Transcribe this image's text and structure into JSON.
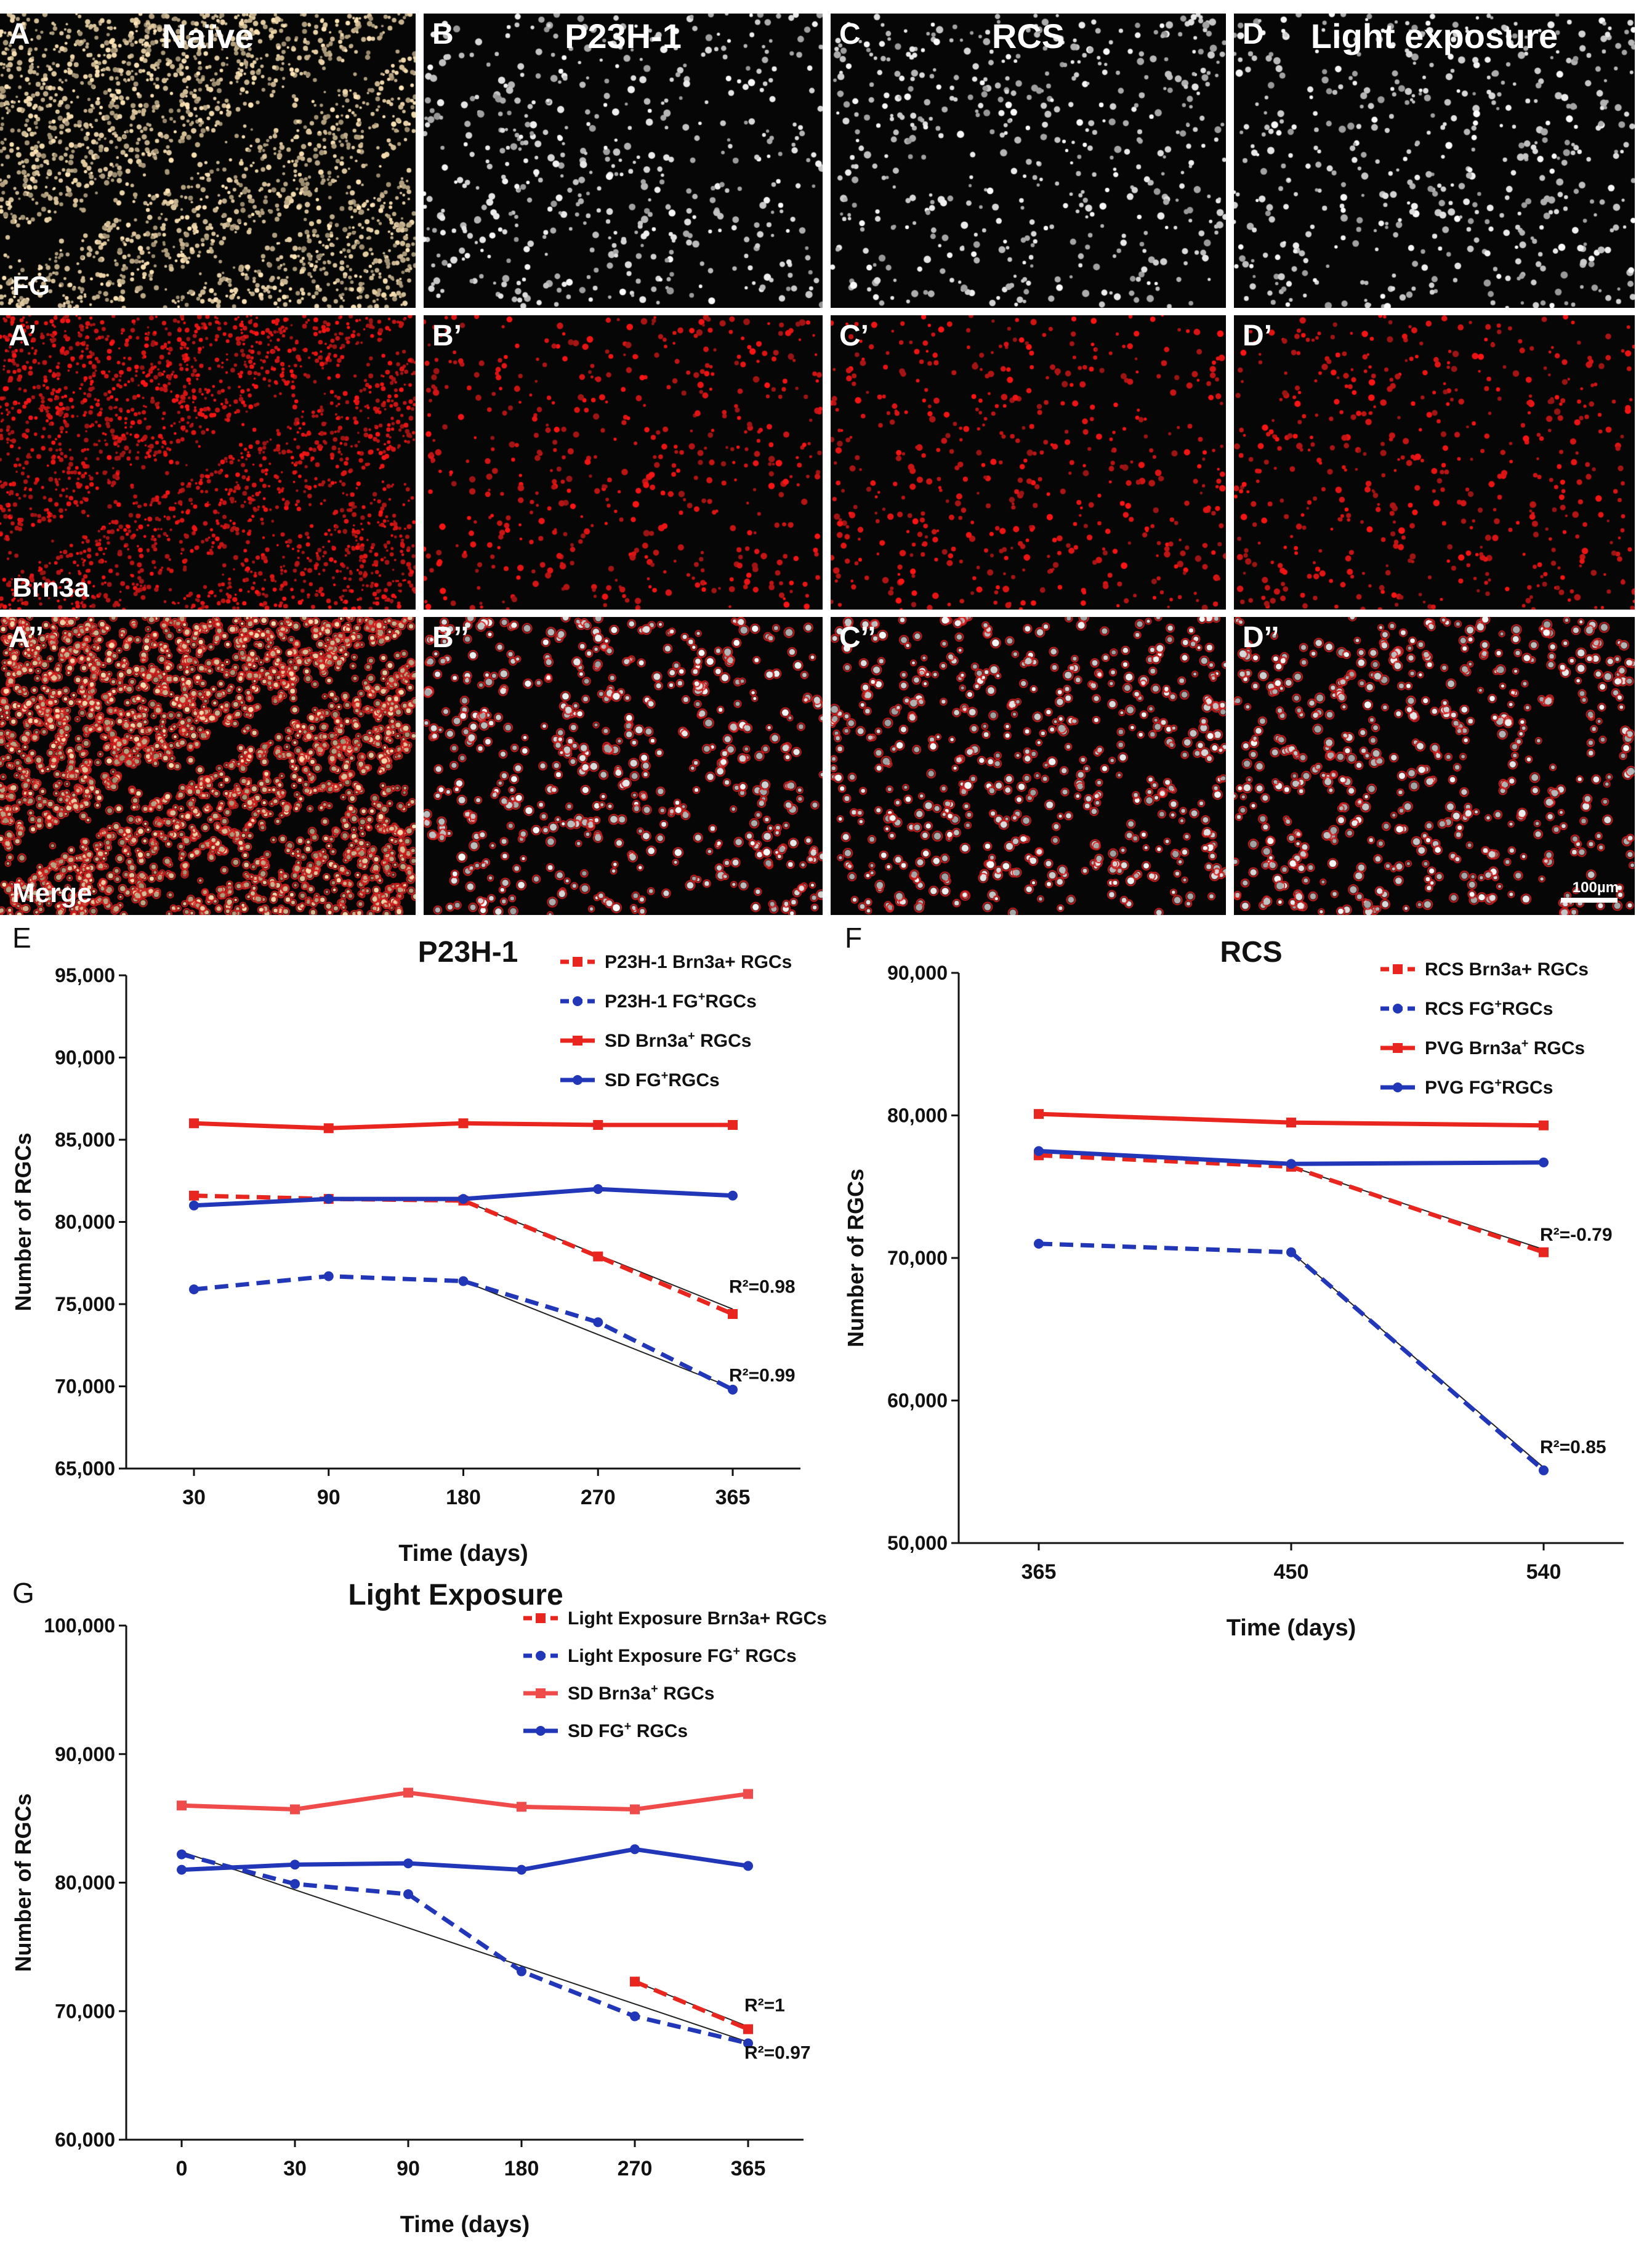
{
  "micro": {
    "columns": [
      {
        "title": "Naïve",
        "letters": [
          "A",
          "A’",
          "A’’"
        ],
        "kind": "naive"
      },
      {
        "title": "P23H-1",
        "letters": [
          "B",
          "B’",
          "B’’"
        ],
        "kind": "p23h"
      },
      {
        "title": "RCS",
        "letters": [
          "C",
          "C’",
          "C’’"
        ],
        "kind": "rcs"
      },
      {
        "title": "Light exposure",
        "letters": [
          "D",
          "D’",
          "D’’"
        ],
        "kind": "light"
      }
    ],
    "row_labels": [
      "FG",
      "Brn3a",
      "Merge"
    ],
    "scale_bar": "100µm"
  },
  "chart_data": [
    {
      "panel": "E",
      "type": "line",
      "title": "P23H-1",
      "xlabel": "Time (days)",
      "ylabel": "Number of RGCs",
      "categories": [
        "30",
        "90",
        "180",
        "270",
        "365"
      ],
      "ylim": [
        65000,
        95000
      ],
      "yticks": [
        "65,000",
        "70,000",
        "75,000",
        "80,000",
        "85,000",
        "90,000",
        "95,000"
      ],
      "legend": [
        {
          "label": "P23H-1  Brn3a+ RGCs",
          "pre": "P23H-1  Brn3a",
          "sup": "",
          "post": "+ RGCs",
          "color": "#e8261f",
          "dash": true
        },
        {
          "label": "P23H-1 FG+RGCs",
          "pre": "P23H-1 FG",
          "sup": "+",
          "post": "RGCs",
          "color": "#2236b8",
          "dash": true
        },
        {
          "label": "SD Brn3a+ RGCs",
          "pre": "SD Brn3a",
          "sup": "+",
          "post": " RGCs",
          "color": "#e8261f",
          "dash": false
        },
        {
          "label": "SD FG+RGCs",
          "pre": "SD FG",
          "sup": "+",
          "post": "RGCs",
          "color": "#2236b8",
          "dash": false
        }
      ],
      "series": [
        {
          "name": "P23H-1 Brn3a+ RGCs",
          "style": "dashed",
          "marker": "square",
          "color": "#e8261f",
          "values": [
            81600,
            81400,
            81300,
            77900,
            74400
          ]
        },
        {
          "name": "P23H-1 FG+ RGCs",
          "style": "dashed",
          "marker": "circle",
          "color": "#2236b8",
          "values": [
            75900,
            76700,
            76400,
            73900,
            69800
          ]
        },
        {
          "name": "SD Brn3a+ RGCs",
          "style": "solid",
          "marker": "square",
          "color": "#e8261f",
          "values": [
            86000,
            85700,
            86000,
            85900,
            85900
          ]
        },
        {
          "name": "SD FG+ RGCs",
          "style": "solid",
          "marker": "circle",
          "color": "#2236b8",
          "values": [
            81000,
            81400,
            81400,
            82000,
            81600
          ]
        }
      ],
      "trend_lines": [
        {
          "from": [
            2,
            81300
          ],
          "to": [
            4,
            74700
          ]
        },
        {
          "from": [
            2,
            76400
          ],
          "to": [
            4,
            69900
          ]
        }
      ],
      "annotations": [
        {
          "text": "R²=0.98",
          "at": [
            4,
            75700
          ]
        },
        {
          "text": "R²=0.99",
          "at": [
            4,
            70300
          ]
        }
      ]
    },
    {
      "panel": "F",
      "type": "line",
      "title": "RCS",
      "xlabel": "Time (days)",
      "ylabel": "Number of RGCs",
      "categories": [
        "365",
        "450",
        "540"
      ],
      "ylim": [
        50000,
        90000
      ],
      "yticks": [
        "50,000",
        "60,000",
        "70,000",
        "80,000",
        "90,000"
      ],
      "legend": [
        {
          "label": "RCS  Brn3a+ RGCs",
          "pre": "RCS  Brn3a",
          "sup": "",
          "post": "+ RGCs",
          "color": "#e8261f",
          "dash": true
        },
        {
          "label": "RCS FG+RGCs",
          "pre": "RCS FG",
          "sup": "+",
          "post": "RGCs",
          "color": "#2236b8",
          "dash": true
        },
        {
          "label": "PVG Brn3a+ RGCs",
          "pre": "PVG Brn3a",
          "sup": "+",
          "post": " RGCs",
          "color": "#e8261f",
          "dash": false
        },
        {
          "label": "PVG FG+RGCs",
          "pre": "PVG FG",
          "sup": "+",
          "post": "RGCs",
          "color": "#2236b8",
          "dash": false
        }
      ],
      "series": [
        {
          "name": "RCS Brn3a+ RGCs",
          "style": "dashed",
          "marker": "square",
          "color": "#e8261f",
          "values": [
            77200,
            76400,
            70400
          ]
        },
        {
          "name": "RCS FG+ RGCs",
          "style": "dashed",
          "marker": "circle",
          "color": "#2236b8",
          "values": [
            71000,
            70400,
            55100
          ]
        },
        {
          "name": "PVG Brn3a+ RGCs",
          "style": "solid",
          "marker": "square",
          "color": "#e8261f",
          "values": [
            80100,
            79500,
            79300
          ]
        },
        {
          "name": "PVG FG+ RGCs",
          "style": "solid",
          "marker": "circle",
          "color": "#2236b8",
          "values": [
            77500,
            76600,
            76700
          ]
        }
      ],
      "trend_lines": [
        {
          "from": [
            1,
            76400
          ],
          "to": [
            2,
            70600
          ]
        },
        {
          "from": [
            1,
            70400
          ],
          "to": [
            2,
            55300
          ]
        }
      ],
      "annotations": [
        {
          "text": "R²=-0.79",
          "at": [
            2,
            71200
          ]
        },
        {
          "text": "R²=0.85",
          "at": [
            2,
            56300
          ]
        }
      ]
    },
    {
      "panel": "G",
      "type": "line",
      "title": "Light Exposure",
      "xlabel": "Time (days)",
      "ylabel": "Number of RGCs",
      "categories": [
        "0",
        "30",
        "90",
        "180",
        "270",
        "365"
      ],
      "ylim": [
        60000,
        100000
      ],
      "yticks": [
        "60,000",
        "70,000",
        "80,000",
        "90,000",
        "100,000"
      ],
      "legend": [
        {
          "label": "Light Exposure  Brn3a+ RGCs",
          "pre": "Light Exposure  Brn3a",
          "sup": "",
          "post": "+ RGCs",
          "color": "#e8261f",
          "dash": true
        },
        {
          "label": "Light Exposure FG+ RGCs",
          "pre": "Light Exposure FG",
          "sup": "+",
          "post": " RGCs",
          "color": "#2236b8",
          "dash": true
        },
        {
          "label": "SD Brn3a+ RGCs",
          "pre": "SD Brn3a",
          "sup": "+",
          "post": " RGCs",
          "color": "#f04b4b",
          "dash": false
        },
        {
          "label": "SD FG+ RGCs",
          "pre": "SD FG",
          "sup": "+",
          "post": " RGCs",
          "color": "#2236b8",
          "dash": false
        }
      ],
      "series": [
        {
          "name": "Light Exposure Brn3a+ RGCs",
          "style": "dashed",
          "marker": "square",
          "color": "#e8261f",
          "values": [
            null,
            null,
            null,
            null,
            72300,
            68600
          ]
        },
        {
          "name": "Light Exposure FG+ RGCs",
          "style": "dashed",
          "marker": "circle",
          "color": "#2236b8",
          "values": [
            82200,
            79900,
            79100,
            73100,
            69600,
            67500
          ]
        },
        {
          "name": "SD Brn3a+ RGCs",
          "style": "solid",
          "marker": "square",
          "color": "#f04b4b",
          "values": [
            86000,
            85700,
            87000,
            85900,
            85700,
            86900
          ]
        },
        {
          "name": "SD FG+ RGCs",
          "style": "solid",
          "marker": "circle",
          "color": "#2236b8",
          "values": [
            81000,
            81400,
            81500,
            81000,
            82600,
            81300
          ]
        }
      ],
      "trend_lines": [
        {
          "from": [
            0,
            82400
          ],
          "to": [
            5,
            67600
          ]
        },
        {
          "from": [
            4,
            72300
          ],
          "to": [
            5,
            68800
          ]
        }
      ],
      "annotations": [
        {
          "text": "R²=1",
          "at": [
            5,
            70000
          ]
        },
        {
          "text": "R²=0.97",
          "at": [
            5,
            66300
          ]
        }
      ]
    }
  ]
}
